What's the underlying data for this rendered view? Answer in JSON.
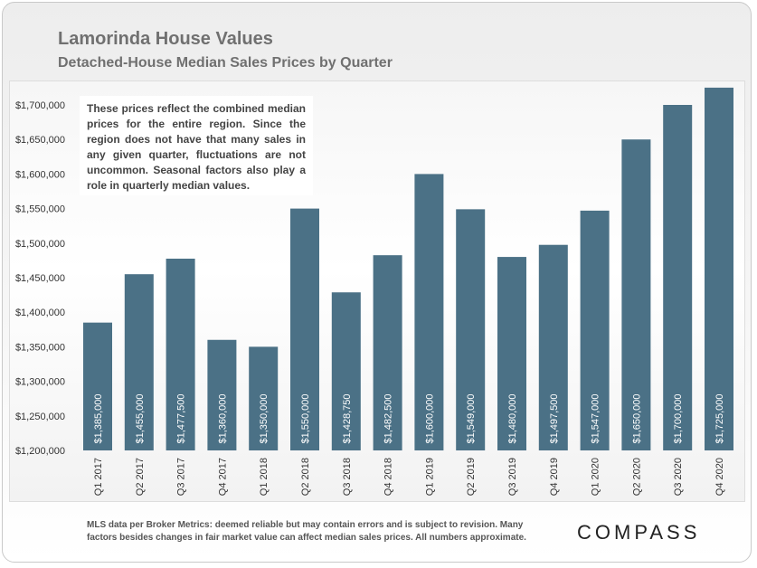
{
  "title": "Lamorinda House Values",
  "subtitle": "Detached-House Median Sales Prices by Quarter",
  "note": "These prices reflect the combined median prices for the entire region. Since the region does not have that many sales in any given quarter, fluctuations are not uncommon. Seasonal factors also play a role in quarterly median values.",
  "footer": "MLS data per Broker Metrics:  deemed reliable but may contain errors and is subject to revision. Many factors besides changes in fair market value can affect median sales prices. All numbers approximate.",
  "logo": "COMPASS",
  "colors": {
    "bar": "#4b7186",
    "label": "#ffffff",
    "axis_text": "#333333"
  },
  "chart_data": {
    "type": "bar",
    "title": "Lamorinda House Values",
    "subtitle": "Detached-House Median Sales Prices by Quarter",
    "xlabel": "",
    "ylabel": "",
    "ylim": [
      1200000,
      1725000
    ],
    "yticks": [
      1200000,
      1250000,
      1300000,
      1350000,
      1400000,
      1450000,
      1500000,
      1550000,
      1600000,
      1650000,
      1700000
    ],
    "ytick_labels": [
      "$1,200,000",
      "$1,250,000",
      "$1,300,000",
      "$1,350,000",
      "$1,400,000",
      "$1,450,000",
      "$1,500,000",
      "$1,550,000",
      "$1,600,000",
      "$1,650,000",
      "$1,700,000"
    ],
    "categories": [
      "Q1 2017",
      "Q2 2017",
      "Q3 2017",
      "Q4 2017",
      "Q1 2018",
      "Q2 2018",
      "Q3 2018",
      "Q4 2018",
      "Q1 2019",
      "Q2 2019",
      "Q3 2019",
      "Q4 2019",
      "Q1 2020",
      "Q2 2020",
      "Q3 2020",
      "Q4 2020"
    ],
    "values": [
      1385000,
      1455000,
      1477500,
      1360000,
      1350000,
      1550000,
      1428750,
      1482500,
      1600000,
      1549000,
      1480000,
      1497500,
      1547000,
      1650000,
      1700000,
      1725000
    ],
    "data_labels": [
      "$1,385,000",
      "$1,455,000",
      "$1,477,500",
      "$1,360,000",
      "$1,350,000",
      "$1,550,000",
      "$1,428,750",
      "$1,482,500",
      "$1,600,000",
      "$1,549,000",
      "$1,480,000",
      "$1,497,500",
      "$1,547,000",
      "$1,650,000",
      "$1,700,000",
      "$1,725,000"
    ],
    "grid": false,
    "legend": "none"
  }
}
